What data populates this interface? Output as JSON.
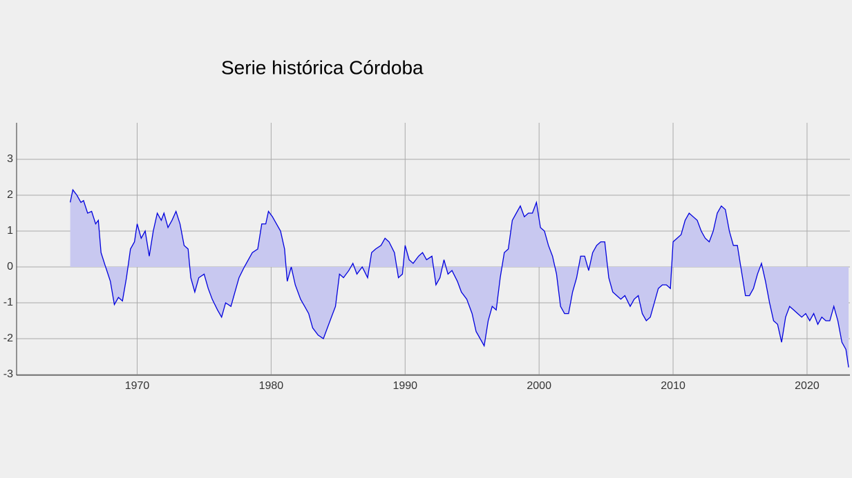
{
  "chart_data": {
    "type": "area-line",
    "title": "Serie histórica Córdoba",
    "color": "#0000dd",
    "fill_color": "#c8c8f0",
    "grid": true,
    "xlim": [
      1961,
      2023.2
    ],
    "ylim": [
      -3.02,
      4.02
    ],
    "xticks": [
      1970,
      1980,
      1990,
      2000,
      2010,
      2020
    ],
    "yticks": [
      -3,
      -2,
      -1,
      0,
      1,
      2,
      3
    ],
    "x": [
      1965.0,
      1965.2,
      1965.5,
      1965.8,
      1966.0,
      1966.3,
      1966.6,
      1966.9,
      1967.1,
      1967.3,
      1967.6,
      1968.0,
      1968.3,
      1968.6,
      1968.9,
      1969.2,
      1969.5,
      1969.8,
      1970.0,
      1970.3,
      1970.6,
      1970.9,
      1971.2,
      1971.5,
      1971.8,
      1972.0,
      1972.3,
      1972.6,
      1972.9,
      1973.2,
      1973.5,
      1973.8,
      1974.0,
      1974.3,
      1974.6,
      1975.0,
      1975.3,
      1975.6,
      1976.0,
      1976.3,
      1976.6,
      1977.0,
      1977.3,
      1977.6,
      1978.0,
      1978.3,
      1978.6,
      1979.0,
      1979.3,
      1979.6,
      1979.8,
      1980.1,
      1980.4,
      1980.7,
      1981.0,
      1981.2,
      1981.5,
      1981.8,
      1982.2,
      1982.5,
      1982.8,
      1983.1,
      1983.5,
      1983.9,
      1984.2,
      1984.5,
      1984.8,
      1985.1,
      1985.4,
      1985.8,
      1986.1,
      1986.4,
      1986.8,
      1987.2,
      1987.5,
      1987.8,
      1988.2,
      1988.5,
      1988.8,
      1989.2,
      1989.5,
      1989.8,
      1990.0,
      1990.3,
      1990.6,
      1991.0,
      1991.3,
      1991.6,
      1992.0,
      1992.3,
      1992.6,
      1992.9,
      1993.2,
      1993.5,
      1993.9,
      1994.2,
      1994.6,
      1995.0,
      1995.3,
      1995.6,
      1995.9,
      1996.2,
      1996.5,
      1996.8,
      1997.1,
      1997.4,
      1997.7,
      1998.0,
      1998.3,
      1998.6,
      1998.9,
      1999.2,
      1999.5,
      1999.8,
      2000.1,
      2000.4,
      2000.7,
      2001.0,
      2001.3,
      2001.6,
      2001.9,
      2002.2,
      2002.5,
      2002.8,
      2003.1,
      2003.4,
      2003.7,
      2004.0,
      2004.3,
      2004.6,
      2004.9,
      2005.2,
      2005.5,
      2005.8,
      2006.1,
      2006.4,
      2006.8,
      2007.1,
      2007.4,
      2007.7,
      2008.0,
      2008.3,
      2008.6,
      2008.9,
      2009.2,
      2009.5,
      2009.8,
      2010.0,
      2010.3,
      2010.6,
      2010.9,
      2011.2,
      2011.5,
      2011.8,
      2012.1,
      2012.4,
      2012.7,
      2013.0,
      2013.3,
      2013.6,
      2013.9,
      2014.2,
      2014.5,
      2014.8,
      2015.1,
      2015.4,
      2015.7,
      2016.0,
      2016.3,
      2016.6,
      2016.9,
      2017.2,
      2017.5,
      2017.8,
      2018.1,
      2018.4,
      2018.7,
      2019.0,
      2019.3,
      2019.6,
      2019.9,
      2020.2,
      2020.5,
      2020.8,
      2021.1,
      2021.4,
      2021.7,
      2022.0,
      2022.3,
      2022.6,
      2022.9,
      2023.1
    ],
    "values": [
      1.8,
      2.15,
      2.0,
      1.8,
      1.85,
      1.5,
      1.55,
      1.2,
      1.3,
      0.4,
      0.05,
      -0.4,
      -1.05,
      -0.85,
      -0.95,
      -0.3,
      0.5,
      0.7,
      1.2,
      0.8,
      1.0,
      0.3,
      1.0,
      1.5,
      1.3,
      1.5,
      1.1,
      1.3,
      1.55,
      1.2,
      0.6,
      0.5,
      -0.3,
      -0.7,
      -0.3,
      -0.2,
      -0.6,
      -0.9,
      -1.2,
      -1.4,
      -1.0,
      -1.1,
      -0.7,
      -0.3,
      0.0,
      0.2,
      0.4,
      0.5,
      1.2,
      1.2,
      1.55,
      1.4,
      1.2,
      1.0,
      0.5,
      -0.4,
      0.0,
      -0.5,
      -0.9,
      -1.1,
      -1.3,
      -1.7,
      -1.9,
      -2.0,
      -1.7,
      -1.4,
      -1.1,
      -0.2,
      -0.3,
      -0.1,
      0.1,
      -0.2,
      0.0,
      -0.3,
      0.4,
      0.5,
      0.6,
      0.8,
      0.7,
      0.4,
      -0.3,
      -0.2,
      0.6,
      0.2,
      0.1,
      0.3,
      0.4,
      0.2,
      0.3,
      -0.5,
      -0.3,
      0.2,
      -0.2,
      -0.1,
      -0.4,
      -0.7,
      -0.9,
      -1.3,
      -1.8,
      -2.0,
      -2.2,
      -1.5,
      -1.1,
      -1.2,
      -0.3,
      0.4,
      0.5,
      1.3,
      1.5,
      1.7,
      1.4,
      1.5,
      1.5,
      1.8,
      1.1,
      1.0,
      0.6,
      0.3,
      -0.2,
      -1.1,
      -1.3,
      -1.3,
      -0.7,
      -0.3,
      0.3,
      0.3,
      -0.1,
      0.4,
      0.6,
      0.7,
      0.7,
      -0.3,
      -0.7,
      -0.8,
      -0.9,
      -0.8,
      -1.1,
      -0.9,
      -0.8,
      -1.3,
      -1.5,
      -1.4,
      -1.0,
      -0.6,
      -0.5,
      -0.5,
      -0.6,
      0.7,
      0.8,
      0.9,
      1.3,
      1.5,
      1.4,
      1.3,
      1.0,
      0.8,
      0.7,
      1.0,
      1.5,
      1.7,
      1.6,
      1.0,
      0.6,
      0.6,
      -0.1,
      -0.8,
      -0.8,
      -0.6,
      -0.2,
      0.1,
      -0.4,
      -1.0,
      -1.5,
      -1.6,
      -2.1,
      -1.4,
      -1.1,
      -1.2,
      -1.3,
      -1.4,
      -1.3,
      -1.5,
      -1.3,
      -1.6,
      -1.4,
      -1.5,
      -1.5,
      -1.1,
      -1.5,
      -2.1,
      -2.3,
      -2.8
    ]
  }
}
